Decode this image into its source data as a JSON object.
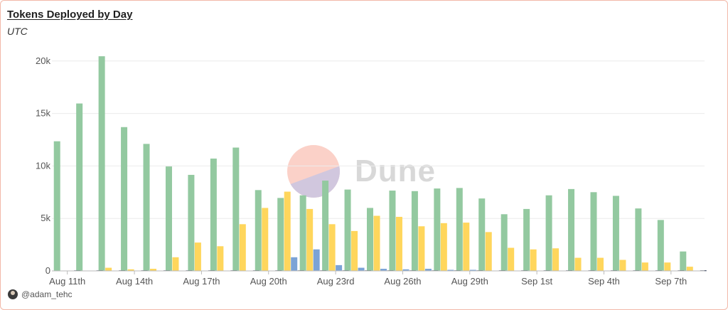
{
  "chart_data": {
    "type": "bar",
    "title": "Tokens Deployed by Day",
    "subtitle": "UTC",
    "xlabel": "",
    "ylabel": "",
    "ylim": [
      0,
      21000
    ],
    "y_ticks": [
      0,
      5000,
      10000,
      15000,
      20000
    ],
    "y_tick_labels": [
      "0",
      "5k",
      "10k",
      "15k",
      "20k"
    ],
    "x_tick_labels": [
      "Aug 11th",
      "Aug 14th",
      "Aug 17th",
      "Aug 20th",
      "Aug 23rd",
      "Aug 26th",
      "Aug 29th",
      "Sep 1st",
      "Sep 4th",
      "Sep 7th"
    ],
    "x_tick_start_index": 0,
    "x_tick_step": 3,
    "grid": true,
    "legend": "none",
    "categories": [
      "Aug 11",
      "Aug 12",
      "Aug 13",
      "Aug 14",
      "Aug 15",
      "Aug 16",
      "Aug 17",
      "Aug 18",
      "Aug 19",
      "Aug 20",
      "Aug 21",
      "Aug 22",
      "Aug 23",
      "Aug 24",
      "Aug 25",
      "Aug 26",
      "Aug 27",
      "Aug 28",
      "Aug 29",
      "Aug 30",
      "Aug 31",
      "Sep 1",
      "Sep 2",
      "Sep 3",
      "Sep 4",
      "Sep 5",
      "Sep 6",
      "Sep 7",
      "Sep 8"
    ],
    "series": [
      {
        "color": "#93c9a0",
        "values": [
          12350,
          15950,
          20450,
          13700,
          12100,
          9950,
          9150,
          10700,
          11750,
          7700,
          6950,
          7200,
          8600,
          7750,
          6000,
          7650,
          7600,
          7850,
          7900,
          6900,
          5400,
          5900,
          7200,
          7800,
          7500,
          7150,
          5950,
          4850,
          1850
        ]
      },
      {
        "color": "#ffd65c",
        "values": [
          0,
          0,
          300,
          150,
          200,
          1300,
          2700,
          2350,
          4450,
          6000,
          7550,
          5900,
          4450,
          3800,
          5250,
          5150,
          4250,
          4550,
          4600,
          3700,
          2200,
          2050,
          2150,
          1250,
          1250,
          1050,
          800,
          800,
          400
        ]
      },
      {
        "color": "#7ba3d6",
        "values": [
          0,
          0,
          0,
          0,
          0,
          0,
          0,
          0,
          0,
          0,
          1300,
          2050,
          550,
          300,
          200,
          150,
          200,
          100,
          100,
          0,
          0,
          0,
          0,
          0,
          0,
          0,
          0,
          0,
          0
        ]
      },
      {
        "color": "#1f2a44",
        "values": [
          50,
          50,
          50,
          50,
          50,
          50,
          50,
          50,
          50,
          50,
          50,
          50,
          50,
          50,
          50,
          50,
          50,
          50,
          50,
          50,
          50,
          50,
          50,
          50,
          50,
          50,
          50,
          50,
          50
        ]
      }
    ]
  },
  "footer": {
    "author": "@adam_tehc"
  },
  "watermark": {
    "text": "Dune"
  },
  "colors": {
    "grid": "#ececec",
    "tick_text": "#555555",
    "axis": "#bbbbbb",
    "card_border": "#f2b8a8"
  }
}
